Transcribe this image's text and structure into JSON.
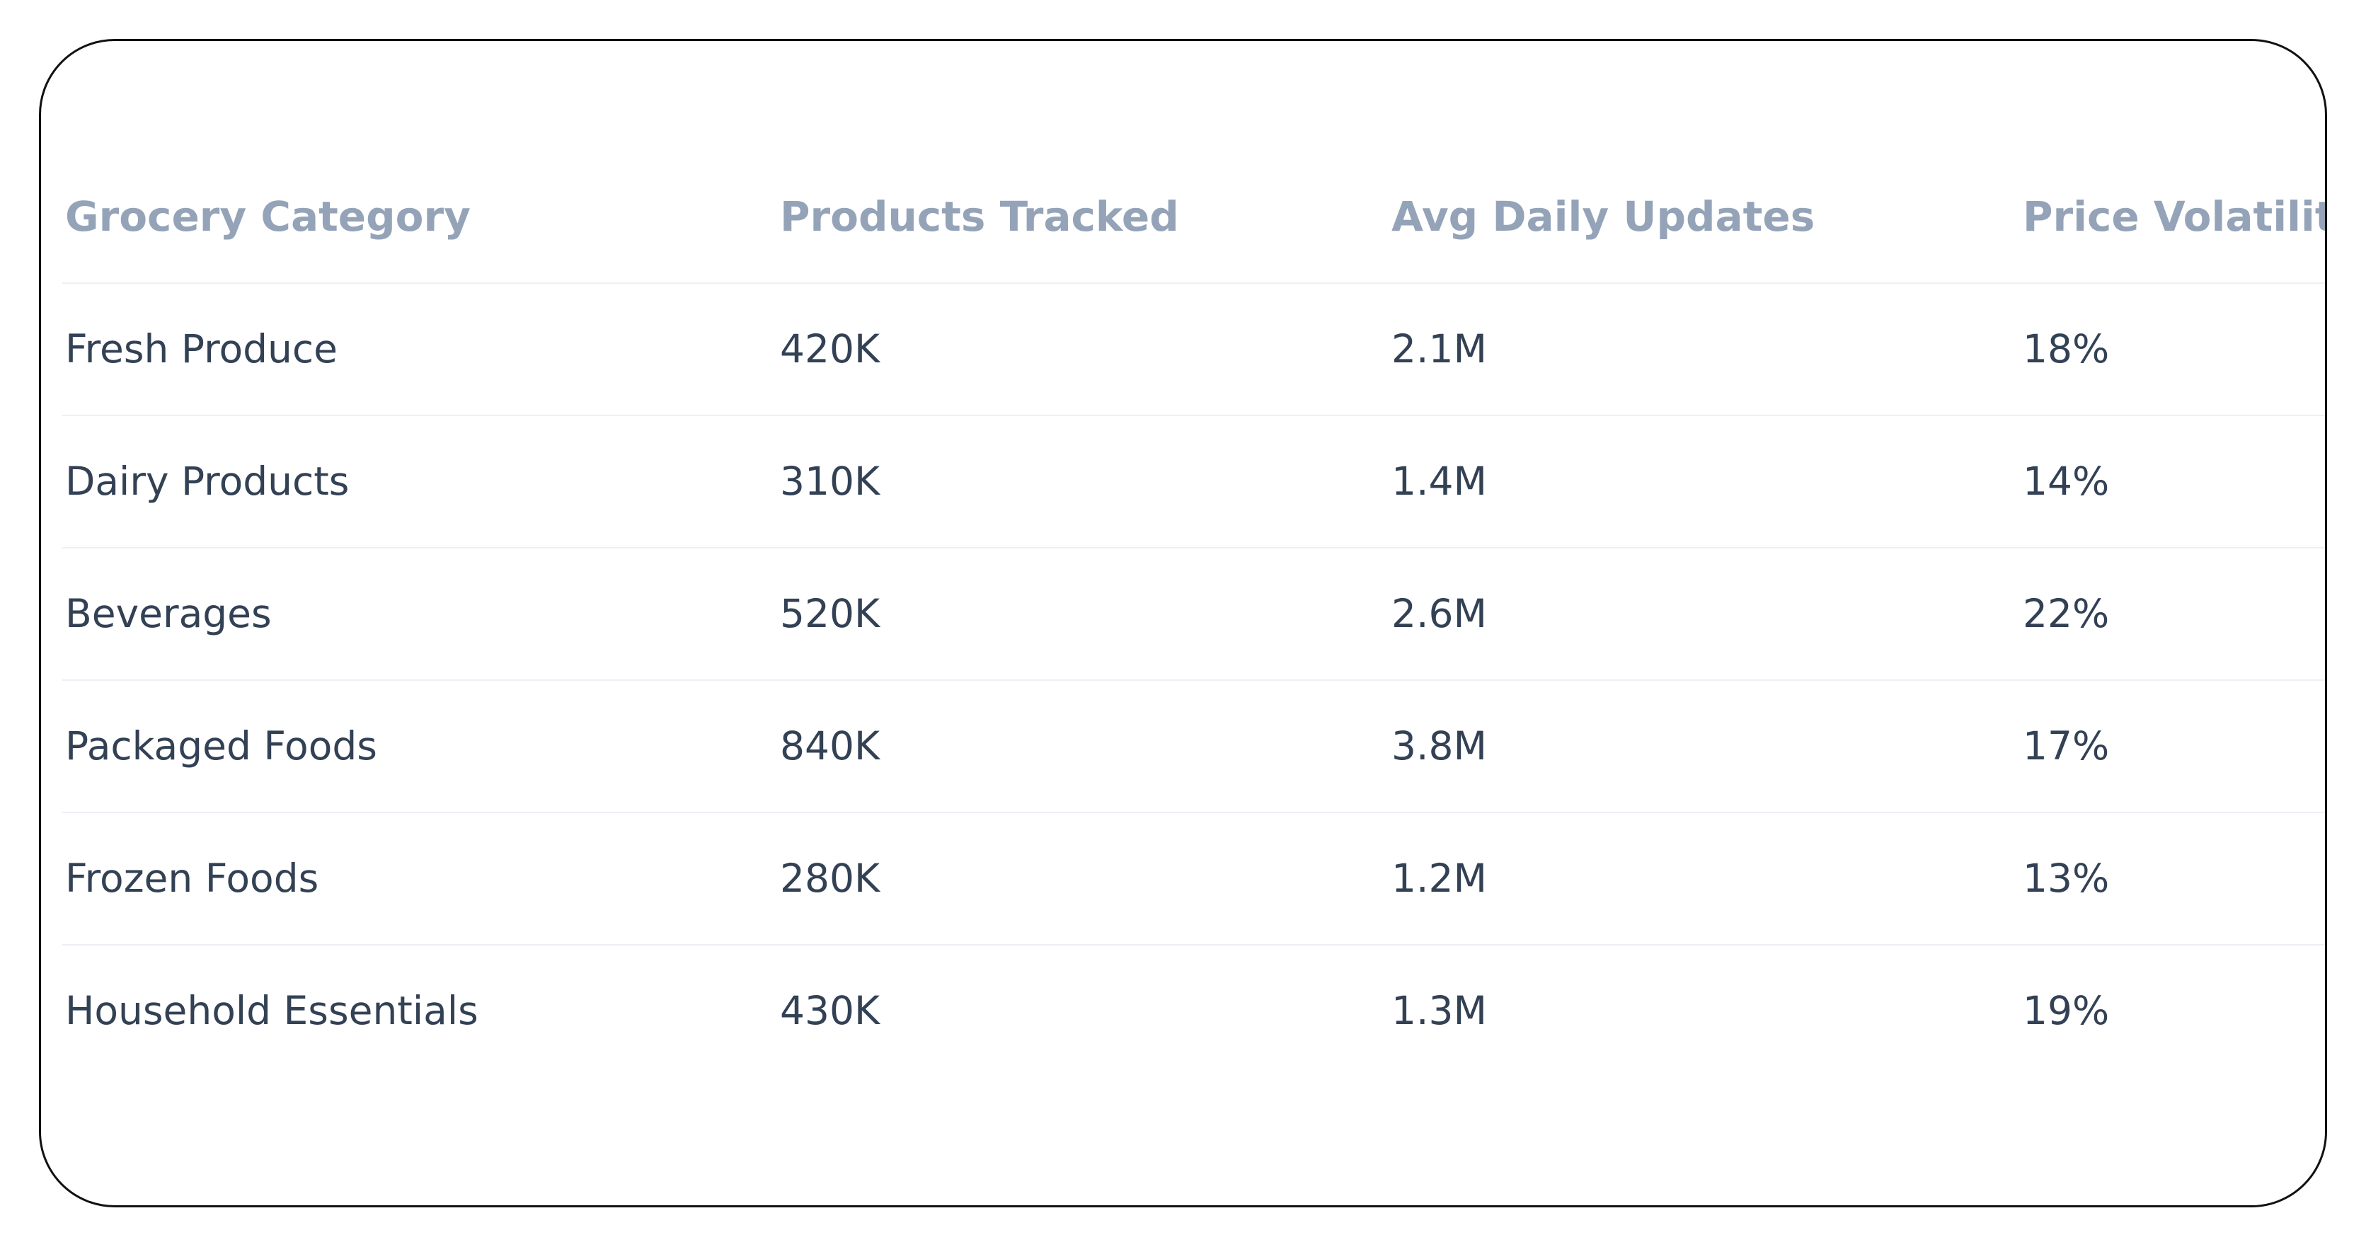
{
  "table": {
    "header": [
      "Grocery Category",
      "Products Tracked",
      "Avg Daily Updates",
      "Price Volatility"
    ],
    "rows": [
      [
        "Fresh Produce",
        "420K",
        "2.1M",
        "18%"
      ],
      [
        "Dairy Products",
        "310K",
        "1.4M",
        "14%"
      ],
      [
        "Beverages",
        "520K",
        "2.6M",
        "22%"
      ],
      [
        "Packaged Foods",
        "840K",
        "3.8M",
        "17%"
      ],
      [
        "Frozen Foods",
        "280K",
        "1.2M",
        "13%"
      ],
      [
        "Household Essentials",
        "430K",
        "1.3M",
        "19%"
      ]
    ]
  }
}
